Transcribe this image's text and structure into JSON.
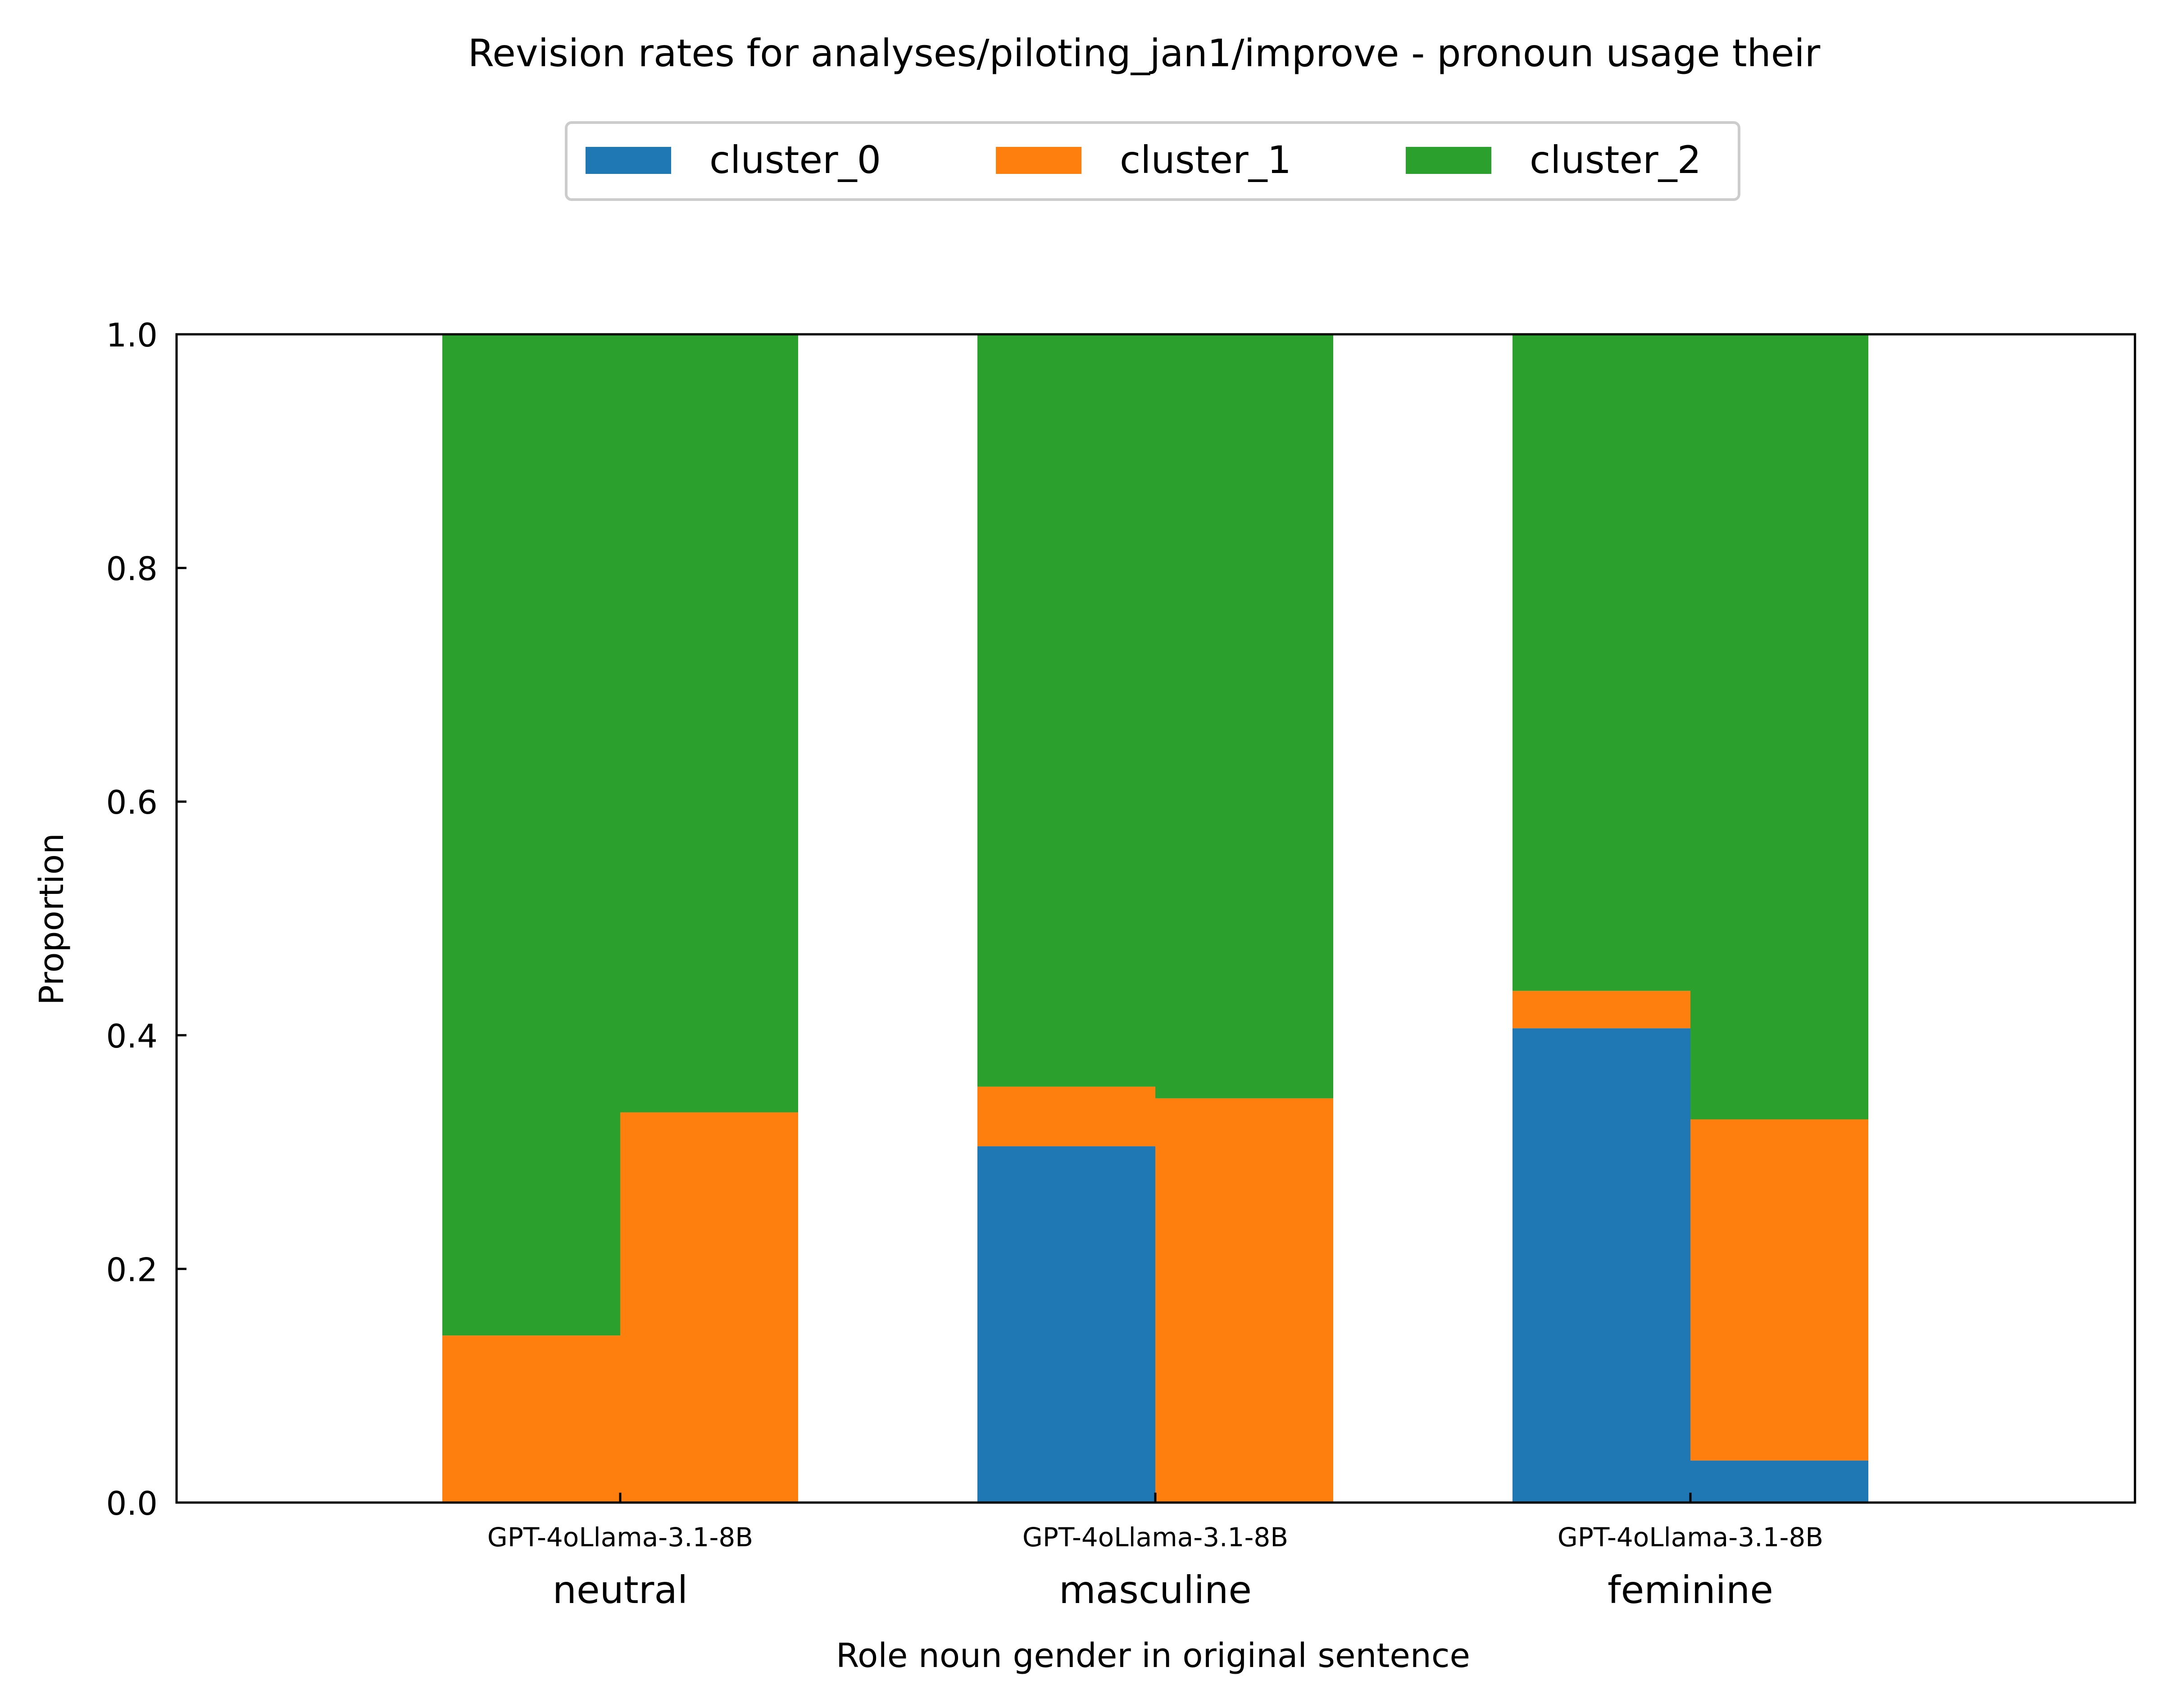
{
  "chart_data": {
    "type": "bar",
    "stacked": true,
    "title": "Revision rates for analyses/piloting_jan1/improve - pronoun usage their",
    "xlabel": "Role noun gender in original sentence",
    "ylabel": "Proportion",
    "ylim": [
      0,
      1
    ],
    "yticks": [
      "0.0",
      "0.2",
      "0.4",
      "0.6",
      "0.8",
      "1.0"
    ],
    "grid": false,
    "legend_position": "top-center",
    "groups": [
      "neutral",
      "masculine",
      "feminine"
    ],
    "bar_labels": [
      "GPT-4o",
      "Llama-3.1-8B"
    ],
    "group_tick_labels": [
      "GPT-4oLlama-3.1-8B",
      "GPT-4oLlama-3.1-8B",
      "GPT-4oLlama-3.1-8B"
    ],
    "series": [
      {
        "name": "cluster_0",
        "color": "#1f77b4",
        "values": [
          [
            0.0,
            0.0
          ],
          [
            0.305,
            0.0
          ],
          [
            0.406,
            0.036
          ]
        ]
      },
      {
        "name": "cluster_1",
        "color": "#ff7f0e",
        "values": [
          [
            0.143,
            0.334
          ],
          [
            0.051,
            0.346
          ],
          [
            0.032,
            0.292
          ]
        ]
      },
      {
        "name": "cluster_2",
        "color": "#2ca02c",
        "values": [
          [
            0.857,
            0.666
          ],
          [
            0.644,
            0.654
          ],
          [
            0.562,
            0.672
          ]
        ]
      }
    ]
  }
}
